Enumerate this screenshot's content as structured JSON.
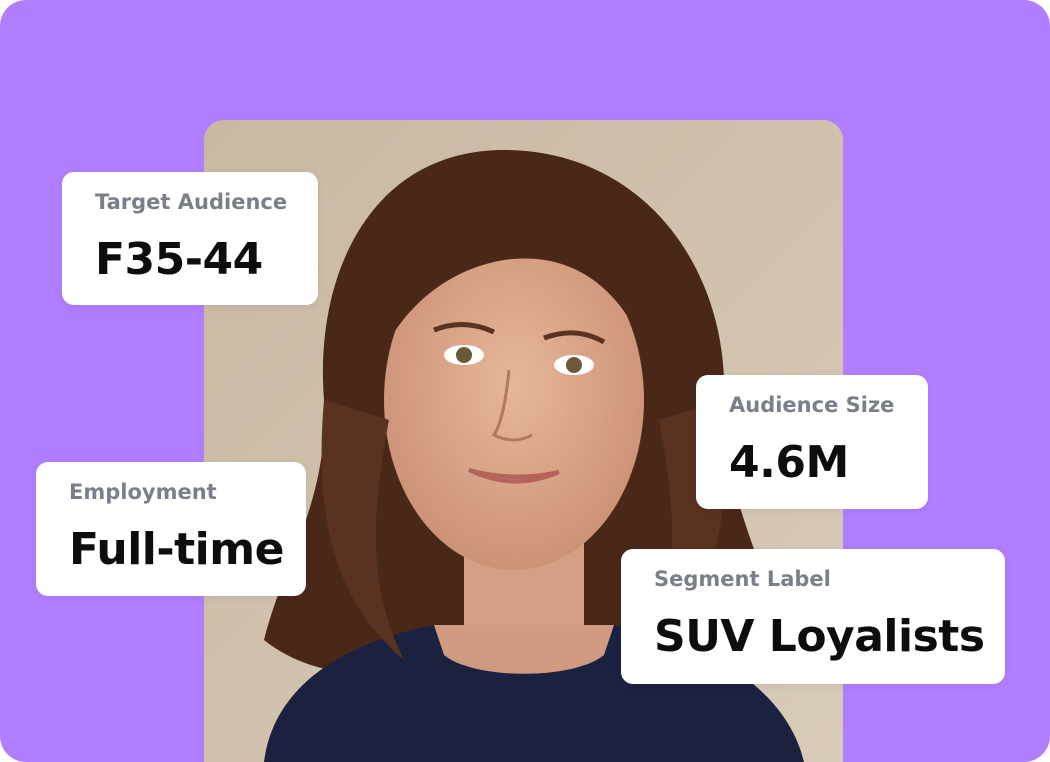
{
  "cards": [
    {
      "label": "Target Audience",
      "value": "F35-44"
    },
    {
      "label": "Audience Size",
      "value": "4.6M"
    },
    {
      "label": "Employment",
      "value": "Full-time"
    },
    {
      "label": "Segment Label",
      "value": "SUV Loyalists"
    }
  ]
}
